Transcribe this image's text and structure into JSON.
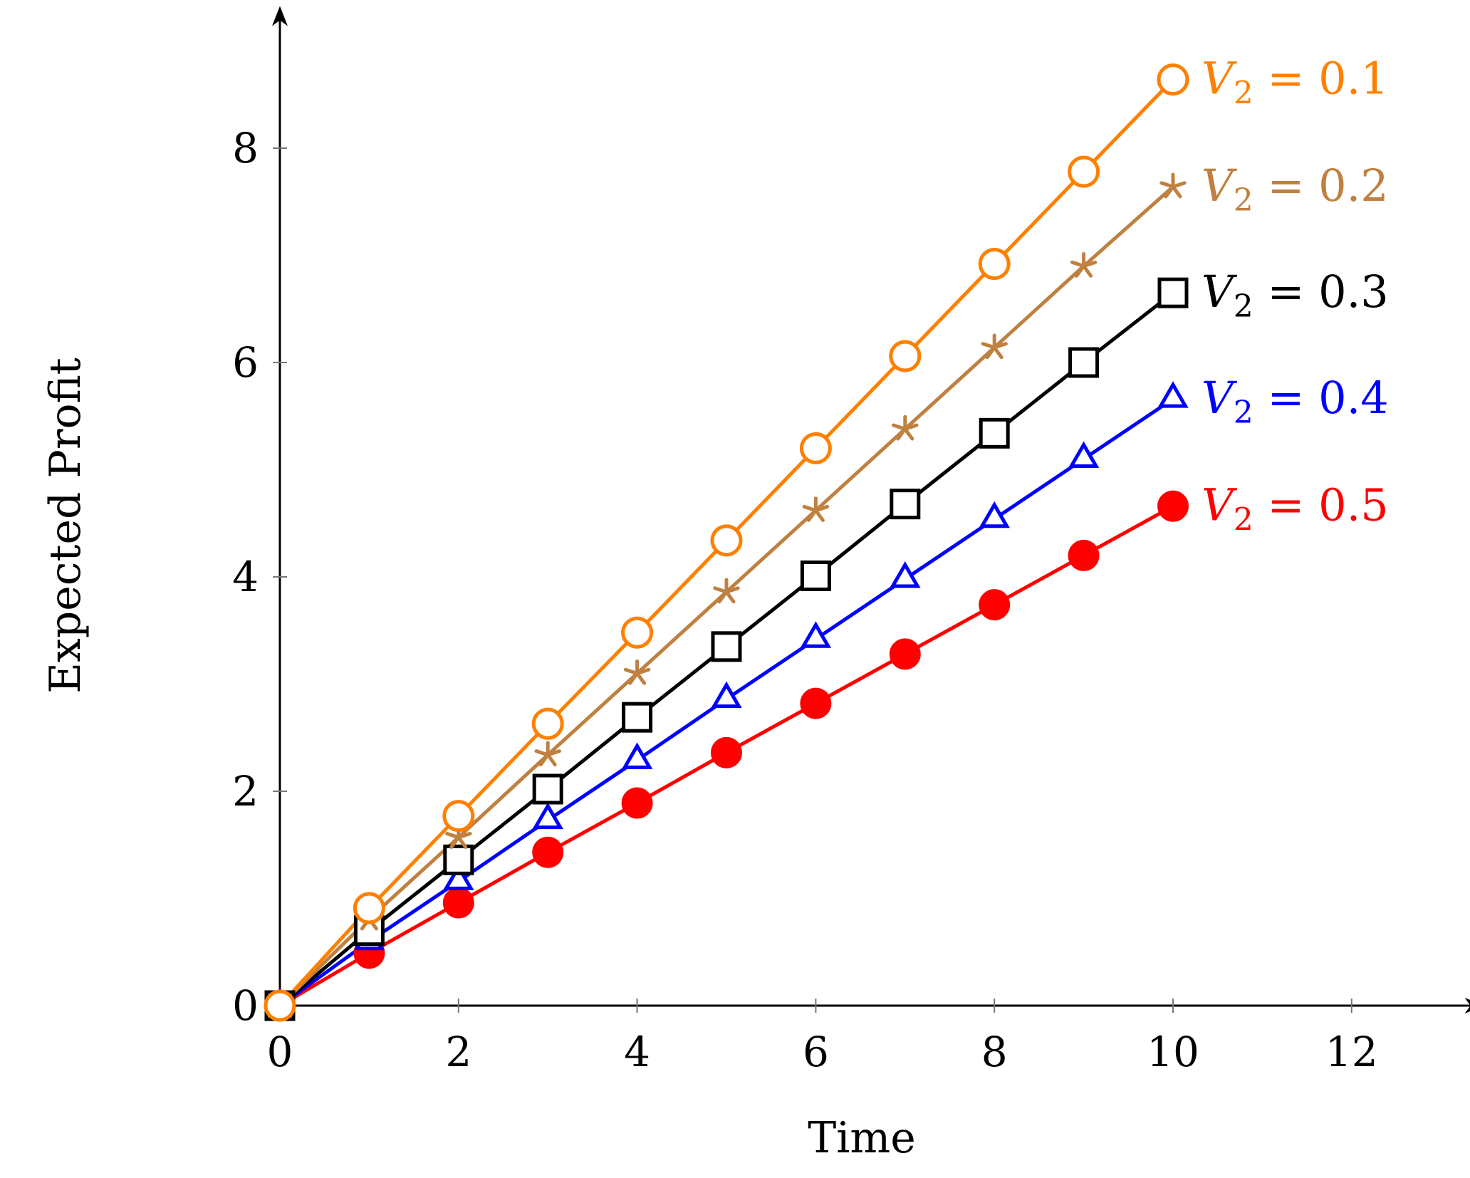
{
  "chart_data": {
    "type": "line",
    "title": "",
    "xlabel": "Time",
    "ylabel": "Expected Profit",
    "xlim": [
      0,
      12.9
    ],
    "ylim": [
      0,
      8.9
    ],
    "xticks": [
      0,
      2,
      4,
      6,
      8,
      10,
      12
    ],
    "yticks": [
      0,
      2,
      4,
      6,
      8
    ],
    "grid": false,
    "legend": "inline labels at line ends (right)",
    "x": [
      0,
      1,
      2,
      3,
      4,
      5,
      6,
      7,
      8,
      9,
      10
    ],
    "series": [
      {
        "name": "V2 = 0.1",
        "label_var": "V",
        "label_sub": "2",
        "label_rest": " = 0.1",
        "color": "#ff8000",
        "marker": "circle-open",
        "values": [
          0,
          0.91,
          1.77,
          2.63,
          3.48,
          4.34,
          5.2,
          6.06,
          6.92,
          7.78,
          8.64
        ]
      },
      {
        "name": "V2 = 0.2",
        "label_var": "V",
        "label_sub": "2",
        "label_rest": " = 0.2",
        "color": "#bf8040",
        "marker": "star",
        "values": [
          0,
          0.81,
          1.57,
          2.34,
          3.1,
          3.86,
          4.62,
          5.38,
          6.14,
          6.9,
          7.64
        ]
      },
      {
        "name": "V2 = 0.3",
        "label_var": "V",
        "label_sub": "2",
        "label_rest": " = 0.3",
        "color": "#000000",
        "marker": "square-open",
        "values": [
          0,
          0.7,
          1.36,
          2.02,
          2.69,
          3.35,
          4.01,
          4.68,
          5.34,
          6.0,
          6.65
        ]
      },
      {
        "name": "V2 = 0.4",
        "label_var": "V",
        "label_sub": "2",
        "label_rest": " = 0.4",
        "color": "#0000ff",
        "marker": "triangle-open",
        "values": [
          0,
          0.6,
          1.16,
          1.73,
          2.29,
          2.86,
          3.42,
          3.98,
          4.54,
          5.1,
          5.66
        ]
      },
      {
        "name": "V2 = 0.5",
        "label_var": "V",
        "label_sub": "2",
        "label_rest": " = 0.5",
        "color": "#ff0000",
        "marker": "circle-filled",
        "values": [
          0,
          0.49,
          0.96,
          1.43,
          1.89,
          2.36,
          2.82,
          3.28,
          3.74,
          4.2,
          4.66
        ]
      }
    ]
  }
}
